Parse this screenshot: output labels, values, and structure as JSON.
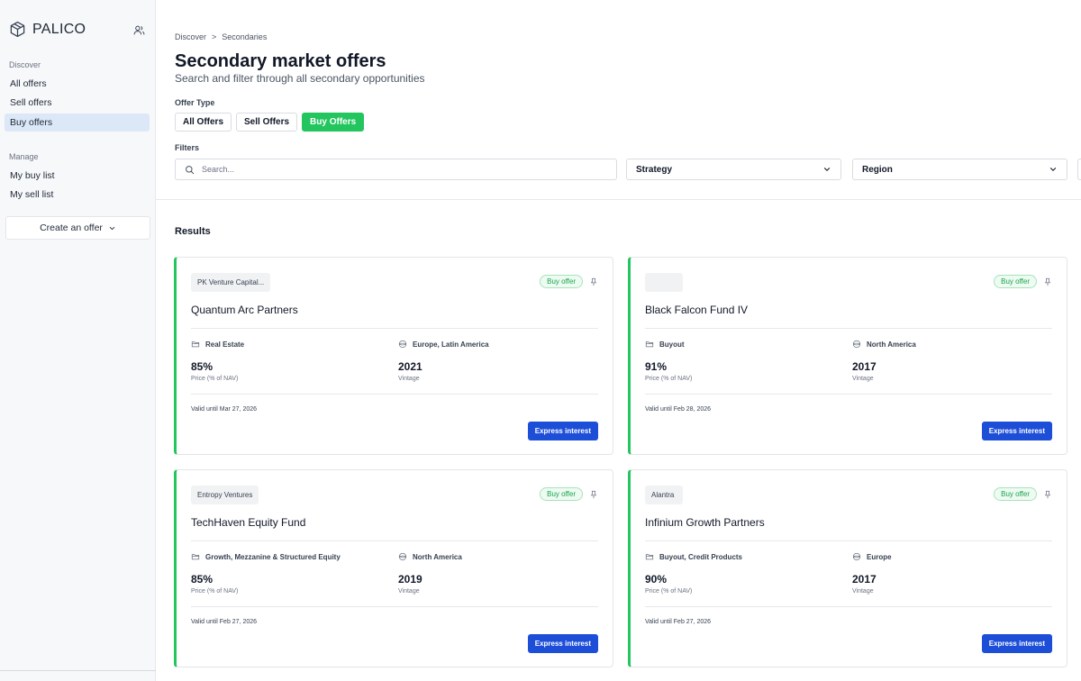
{
  "brand": {
    "name": "PALICO"
  },
  "sidebar": {
    "discover_label": "Discover",
    "discover_items": [
      {
        "label": "All offers"
      },
      {
        "label": "Sell offers"
      },
      {
        "label": "Buy offers",
        "active": true
      }
    ],
    "manage_label": "Manage",
    "manage_items": [
      {
        "label": "My buy list"
      },
      {
        "label": "My sell list"
      }
    ],
    "create_offer_label": "Create an offer"
  },
  "breadcrumb": {
    "root": "Discover",
    "separator": ">",
    "current": "Secondaries"
  },
  "header": {
    "title": "Secondary market offers",
    "subtitle": "Search and filter through all secondary opportunities"
  },
  "offer_type": {
    "label": "Offer Type",
    "tabs": [
      {
        "label": "All Offers"
      },
      {
        "label": "Sell Offers"
      },
      {
        "label": "Buy Offers",
        "active": true
      }
    ]
  },
  "filters": {
    "label": "Filters",
    "search_placeholder": "Search...",
    "strategy_label": "Strategy",
    "region_label": "Region"
  },
  "results": {
    "title": "Results",
    "cards": [
      {
        "company": "PK Venture Capital...",
        "badge": "Buy offer",
        "fund": "Quantum Arc Partners",
        "strategy": "Real Estate",
        "region": "Europe, Latin America",
        "price": "85%",
        "price_label": "Price (% of NAV)",
        "vintage": "2021",
        "vintage_label": "Vintage",
        "valid": "Valid until Mar 27, 2026",
        "cta": "Express interest"
      },
      {
        "company": "",
        "badge": "Buy offer",
        "fund": "Black Falcon Fund IV",
        "strategy": "Buyout",
        "region": "North America",
        "price": "91%",
        "price_label": "Price (% of NAV)",
        "vintage": "2017",
        "vintage_label": "Vintage",
        "valid": "Valid until Feb 28, 2026",
        "cta": "Express interest"
      },
      {
        "company": "Entropy Ventures",
        "badge": "Buy offer",
        "fund": "TechHaven Equity Fund",
        "strategy": "Growth, Mezzanine & Structured Equity",
        "region": "North America",
        "price": "85%",
        "price_label": "Price (% of NAV)",
        "vintage": "2019",
        "vintage_label": "Vintage",
        "valid": "Valid until Feb 27, 2026",
        "cta": "Express interest"
      },
      {
        "company": "Alantra",
        "badge": "Buy offer",
        "fund": "Infinium Growth Partners",
        "strategy": "Buyout, Credit Products",
        "region": "Europe",
        "price": "90%",
        "price_label": "Price (% of NAV)",
        "vintage": "2017",
        "vintage_label": "Vintage",
        "valid": "Valid until Feb 27, 2026",
        "cta": "Express interest"
      }
    ]
  },
  "colors": {
    "accent_green": "#22c55e",
    "cta_blue": "#1d4ed8",
    "active_nav": "#dce8f7"
  },
  "icons": {
    "brand": "cube-icon",
    "account": "users-icon",
    "search": "search-icon",
    "chevron": "chevron-down-icon",
    "pin": "pin-icon",
    "strategy": "folder-icon",
    "region": "globe-icon"
  }
}
